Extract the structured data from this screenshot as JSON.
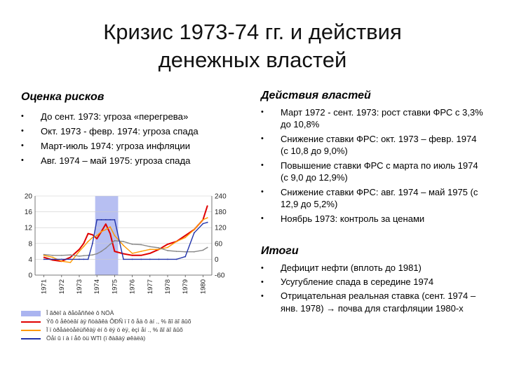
{
  "slide": {
    "title_line1": "Кризис 1973-74 гг. и действия",
    "title_line2": "денежных властей"
  },
  "risks": {
    "heading": "Оценка рисков",
    "items": [
      "До сент. 1973: угроза «перегрева»",
      "Окт. 1973 - февр. 1974: угроза спада",
      "Март-июль 1974: угроза инфляции",
      "Авг. 1974 – май 1975: угроза спада"
    ]
  },
  "actions": {
    "heading": "Действия властей",
    "items": [
      "Март 1972 - сент. 1973: рост ставки ФРС с 3,3% до 10,8%",
      "Снижение ставки ФРС: окт. 1973 – февр. 1974 (с 10,8 до 9,0%)",
      "Повышение ставки ФРС с марта по июль 1974 (с 9,0 до 12,9%)",
      "Снижение ставки ФРС: авг. 1974 – май 1975 (с 12,9 до 5,2%)",
      "Ноябрь 1973: контроль за ценами"
    ]
  },
  "results": {
    "heading": "Итоги",
    "items": [
      "Дефицит нефти (вплоть до 1981)",
      "Усугубление спада в середине 1974",
      "Отрицательная реальная ставка (сент. 1974 – янв. 1978) → почва для стагфляции 1980-х"
    ]
  },
  "chart_data": {
    "type": "line",
    "x": [
      1971,
      1971.5,
      1972,
      1972.5,
      1973,
      1973.25,
      1973.5,
      1973.75,
      1974,
      1974.25,
      1974.5,
      1974.75,
      1975,
      1975.5,
      1976,
      1976.5,
      1977,
      1977.5,
      1978,
      1978.5,
      1979,
      1979.5,
      1980,
      1980.25
    ],
    "x_tick_labels": [
      "1971",
      "1972",
      "1973",
      "1974",
      "1975",
      "1976",
      "1977",
      "1978",
      "1979",
      "1980"
    ],
    "y_left_ticks": [
      "20",
      "16",
      "12",
      "8",
      "4",
      "0"
    ],
    "y_right_ticks": [
      "240",
      "180",
      "120",
      "60",
      "0",
      "-60"
    ],
    "ylim_left": [
      0,
      20
    ],
    "ylim_right": [
      -60,
      240
    ],
    "shaded_period": [
      1973.9,
      1975.2
    ],
    "series": [
      {
        "color": "#e00000",
        "axis": "left",
        "values": [
          4.5,
          3.8,
          3.5,
          4.5,
          6.5,
          8.0,
          10.5,
          10.2,
          9.2,
          11.0,
          12.9,
          10.5,
          6.0,
          5.4,
          5.0,
          5.0,
          5.5,
          6.5,
          7.8,
          8.5,
          10.0,
          11.5,
          14.0,
          17.5
        ]
      },
      {
        "color": "#ff9900",
        "axis": "left",
        "values": [
          5.0,
          4.5,
          3.5,
          3.2,
          6.0,
          7.2,
          8.5,
          9.5,
          10.0,
          11.0,
          11.5,
          12.2,
          10.0,
          7.5,
          5.5,
          6.0,
          6.5,
          6.5,
          7.0,
          8.5,
          9.5,
          11.5,
          14.0,
          14.5
        ]
      },
      {
        "color": "#888888",
        "axis": "left",
        "values": [
          5.2,
          5.0,
          5.0,
          5.1,
          4.8,
          4.9,
          5.0,
          5.1,
          5.4,
          6.0,
          6.8,
          7.8,
          8.7,
          8.5,
          7.8,
          7.7,
          7.2,
          6.9,
          6.2,
          6.0,
          5.9,
          5.9,
          6.3,
          7.0
        ]
      },
      {
        "color": "#2233aa",
        "axis": "right",
        "values": [
          0,
          0,
          0,
          0,
          0,
          0,
          0,
          60,
          150,
          150,
          150,
          150,
          150,
          0,
          0,
          0,
          0,
          0,
          0,
          0,
          10,
          100,
          135,
          140
        ]
      }
    ],
    "legend": [
      "Î ãðèî à ðåöåññèè ô NÖÀ",
      "Ýô ô åêòèâí àÿ ñòàâêà ÔÐÑ ï î ô åä ô àí ., % ãî äî âûõ",
      "Ï ï òðåáèòåëüñêàÿ èí ô ëÿ ö èÿ, èçì åí ., % ãî äî âûõ",
      "Öåí û í à í åô òü WTI (ï ðàâàÿ øêàëà)"
    ],
    "legend_colors": [
      "#aab4f0",
      "#e00000",
      "#ff9900",
      "#2233aa"
    ]
  }
}
